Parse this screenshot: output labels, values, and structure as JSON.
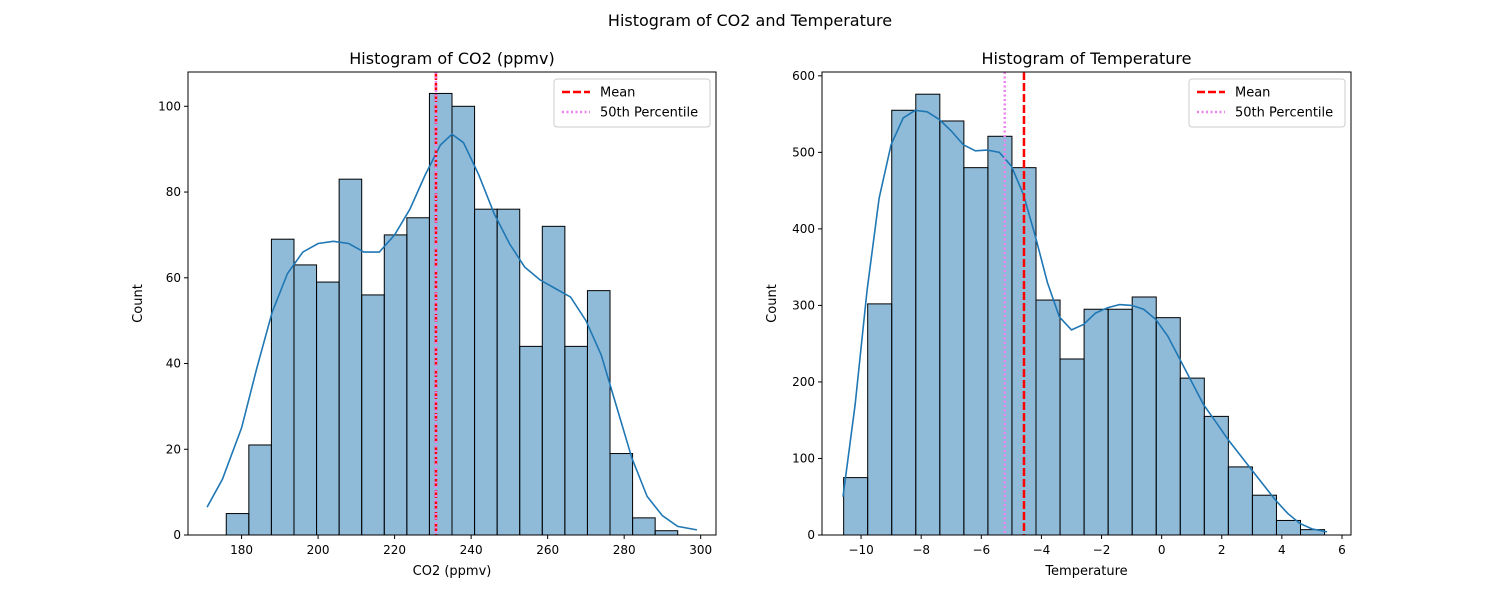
{
  "figure_title": "Histogram of CO2 and Temperature",
  "chart_data": [
    {
      "type": "bar",
      "title": "Histogram of CO2 (ppmv)",
      "xlabel": "CO2 (ppmv)",
      "ylabel": "Count",
      "xlim": [
        166,
        304
      ],
      "ylim": [
        0,
        108
      ],
      "xticks": [
        180,
        200,
        220,
        240,
        260,
        280,
        300
      ],
      "yticks": [
        0,
        20,
        40,
        60,
        80,
        100
      ],
      "bin_edges": [
        176.0,
        181.9,
        187.8,
        193.7,
        199.6,
        205.5,
        211.4,
        217.3,
        223.2,
        229.1,
        235.0,
        240.9,
        246.8,
        252.7,
        258.6,
        264.5,
        270.4,
        276.3,
        282.2,
        288.1,
        294.0
      ],
      "counts": [
        5,
        21,
        69,
        63,
        59,
        83,
        56,
        70,
        74,
        103,
        100,
        76,
        76,
        44,
        72,
        44,
        57,
        19,
        4,
        1
      ],
      "kde": {
        "x": [
          171,
          175,
          180,
          184,
          188,
          192,
          196,
          200,
          204,
          208,
          212,
          216,
          220,
          224,
          228,
          232,
          235,
          238,
          242,
          246,
          250,
          254,
          258,
          262,
          266,
          270,
          274,
          278,
          282,
          286,
          290,
          294,
          299
        ],
        "y": [
          6.5,
          13,
          25,
          39,
          52,
          61,
          66,
          68,
          68.5,
          68,
          66,
          66,
          70,
          76,
          84,
          91,
          93.5,
          91.5,
          84,
          75,
          68,
          62.5,
          59.5,
          57.5,
          55.5,
          50,
          42,
          30,
          18,
          9,
          4.5,
          2,
          1.2
        ]
      },
      "vlines": [
        {
          "label": "Mean",
          "x": 230.8,
          "color": "#ff0000",
          "style": "dashed"
        },
        {
          "label": "50th Percentile",
          "x": 230.8,
          "color": "#ee82ee",
          "style": "dotted"
        }
      ],
      "legend": "top-right",
      "colors": {
        "bar": "#1f77b4",
        "kde": "#1f77b4"
      }
    },
    {
      "type": "bar",
      "title": "Histogram of Temperature",
      "xlabel": "Temperature",
      "ylabel": "Count",
      "xlim": [
        -11.3,
        6.3
      ],
      "ylim": [
        0,
        605
      ],
      "xticks": [
        -10,
        -8,
        -6,
        -4,
        -2,
        0,
        2,
        4,
        6
      ],
      "yticks": [
        0,
        100,
        200,
        300,
        400,
        500,
        600
      ],
      "bin_edges": [
        -10.58,
        -9.78,
        -8.98,
        -8.18,
        -7.38,
        -6.58,
        -5.78,
        -4.98,
        -4.18,
        -3.38,
        -2.58,
        -1.78,
        -0.98,
        -0.18,
        0.62,
        1.42,
        2.22,
        3.02,
        3.82,
        4.62,
        5.42
      ],
      "counts": [
        75,
        302,
        555,
        576,
        541,
        480,
        521,
        480,
        307,
        230,
        295,
        295,
        311,
        284,
        205,
        155,
        89,
        52,
        19,
        7
      ],
      "kde": {
        "x": [
          -10.6,
          -10.2,
          -9.8,
          -9.4,
          -9.0,
          -8.6,
          -8.2,
          -7.8,
          -7.4,
          -7.0,
          -6.6,
          -6.2,
          -5.8,
          -5.4,
          -5.0,
          -4.6,
          -4.2,
          -3.8,
          -3.4,
          -3.0,
          -2.6,
          -2.2,
          -1.8,
          -1.4,
          -1.0,
          -0.6,
          -0.2,
          0.2,
          0.6,
          1.0,
          1.4,
          1.8,
          2.2,
          2.6,
          3.0,
          3.4,
          3.8,
          4.2,
          4.6,
          5.0,
          5.5
        ],
        "y": [
          50,
          170,
          320,
          440,
          510,
          545,
          555,
          553,
          543,
          528,
          510,
          502,
          503,
          500,
          482,
          445,
          390,
          330,
          285,
          268,
          275,
          290,
          297,
          301,
          300,
          295,
          282,
          260,
          230,
          200,
          170,
          148,
          125,
          105,
          85,
          65,
          45,
          28,
          15,
          8,
          4
        ]
      },
      "vlines": [
        {
          "label": "Mean",
          "x": -4.58,
          "color": "#ff0000",
          "style": "dashed"
        },
        {
          "label": "50th Percentile",
          "x": -5.22,
          "color": "#ee82ee",
          "style": "dotted"
        }
      ],
      "legend": "top-right",
      "colors": {
        "bar": "#1f77b4",
        "kde": "#1f77b4"
      }
    }
  ]
}
